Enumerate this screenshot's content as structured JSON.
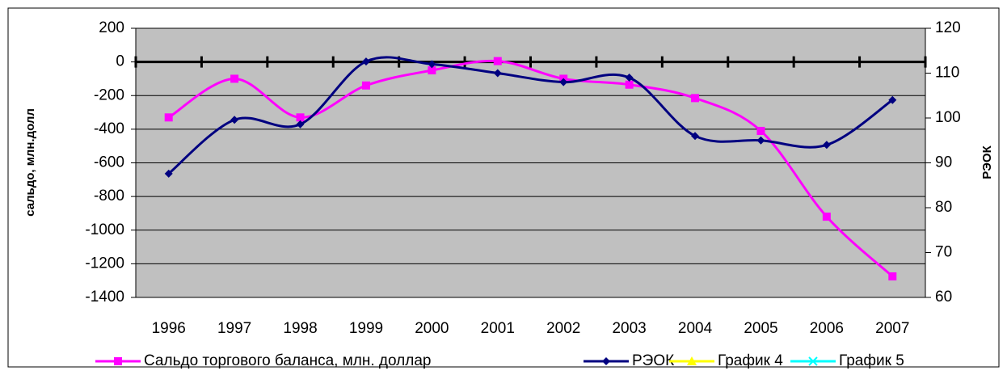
{
  "chart_data": {
    "type": "line",
    "categories": [
      "1996",
      "1997",
      "1998",
      "1999",
      "2000",
      "2001",
      "2002",
      "2003",
      "2004",
      "2005",
      "2006",
      "2007"
    ],
    "y_label": "сальдо, млн.долл",
    "y2_label": "РЭОК",
    "ylim": [
      -1400,
      200
    ],
    "yticks": [
      -1400,
      -1200,
      -1000,
      -800,
      -600,
      -400,
      -200,
      0,
      200
    ],
    "y2lim": [
      60,
      120
    ],
    "y2ticks": [
      60,
      70,
      80,
      90,
      100,
      110,
      120
    ],
    "grid": true,
    "legend": "bottom",
    "series": [
      {
        "name": "Сальдо торгового баланса, млн. доллар",
        "color": "#ff00ff",
        "marker": "square",
        "values": [
          -330,
          -100,
          -330,
          -140,
          -50,
          5,
          -100,
          -135,
          -215,
          -410,
          -920,
          -1275
        ]
      },
      {
        "name": "РЭОК",
        "color": "#000080",
        "marker": "diamond",
        "axis": "y2",
        "values": [
          87.6,
          99.6,
          98.6,
          112.6,
          112,
          110,
          108,
          109,
          96,
          95,
          94,
          104
        ]
      },
      {
        "name": "График 4",
        "color": "#ffff00",
        "marker": "triangle",
        "values": [
          null,
          null,
          null,
          null,
          null,
          null,
          null,
          null,
          null,
          null,
          null,
          null
        ]
      },
      {
        "name": "График 5",
        "color": "#00ffff",
        "marker": "x",
        "values": [
          null,
          null,
          null,
          null,
          null,
          null,
          null,
          null,
          null,
          null,
          null,
          null
        ]
      }
    ]
  }
}
